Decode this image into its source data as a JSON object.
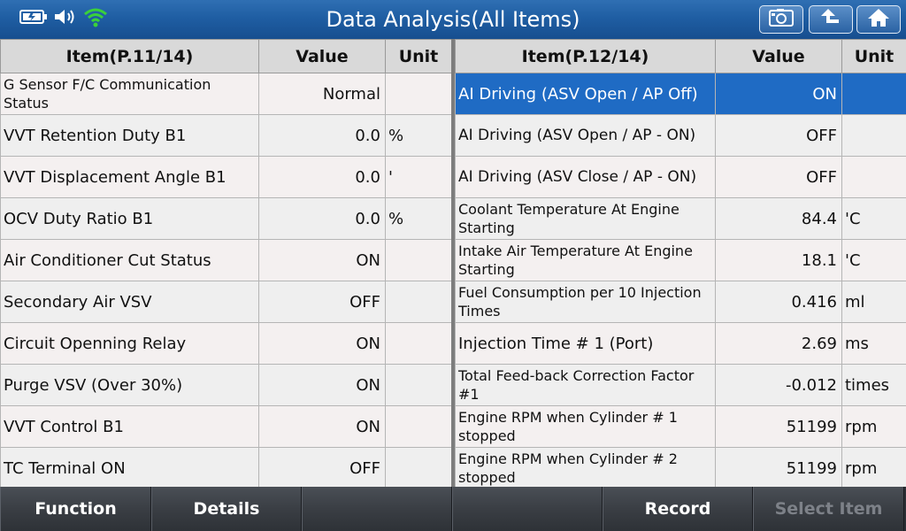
{
  "header": {
    "title": "Data Analysis(All Items)",
    "icons": [
      "battery-icon",
      "speaker-icon",
      "wifi-icon"
    ],
    "buttons": [
      "screenshot-icon",
      "back-icon",
      "home-icon"
    ]
  },
  "left": {
    "headers": {
      "item": "Item(P.11/14)",
      "value": "Value",
      "unit": "Unit"
    },
    "rows": [
      {
        "item": "G Sensor F/C Communication Status",
        "value": "Normal",
        "unit": ""
      },
      {
        "item": "VVT Retention Duty B1",
        "value": "0.0",
        "unit": "%"
      },
      {
        "item": "VVT Displacement Angle B1",
        "value": "0.0",
        "unit": "'"
      },
      {
        "item": "OCV Duty Ratio B1",
        "value": "0.0",
        "unit": "%"
      },
      {
        "item": "Air Conditioner Cut Status",
        "value": "ON",
        "unit": ""
      },
      {
        "item": "Secondary Air VSV",
        "value": "OFF",
        "unit": ""
      },
      {
        "item": "Circuit Openning Relay",
        "value": "ON",
        "unit": ""
      },
      {
        "item": "Purge VSV (Over 30%)",
        "value": "ON",
        "unit": ""
      },
      {
        "item": "VVT Control B1",
        "value": "ON",
        "unit": ""
      },
      {
        "item": "TC Terminal ON",
        "value": "OFF",
        "unit": ""
      }
    ]
  },
  "right": {
    "headers": {
      "item": "Item(P.12/14)",
      "value": "Value",
      "unit": "Unit"
    },
    "rows": [
      {
        "item": "AI Driving (ASV Open / AP Off)",
        "value": "ON",
        "unit": ""
      },
      {
        "item": "AI Driving (ASV Open / AP - ON)",
        "value": "OFF",
        "unit": ""
      },
      {
        "item": "AI Driving (ASV Close / AP - ON)",
        "value": "OFF",
        "unit": ""
      },
      {
        "item": "Coolant Temperature At Engine Starting",
        "value": "84.4",
        "unit": "'C"
      },
      {
        "item": "Intake Air Temperature At Engine Starting",
        "value": "18.1",
        "unit": "'C"
      },
      {
        "item": "Fuel Consumption per 10 Injection Times",
        "value": "0.416",
        "unit": "ml"
      },
      {
        "item": "Injection Time # 1 (Port)",
        "value": "2.69",
        "unit": "ms"
      },
      {
        "item": "Total Feed-back Correction Factor #1",
        "value": "-0.012",
        "unit": "times"
      },
      {
        "item": "Engine RPM when Cylinder # 1 stopped",
        "value": "51199",
        "unit": "rpm"
      },
      {
        "item": "Engine RPM when Cylinder # 2 stopped",
        "value": "51199",
        "unit": "rpm"
      }
    ]
  },
  "footer": {
    "function_label": "Function",
    "details_label": "Details",
    "blank1_label": "",
    "blank2_label": "",
    "record_label": "Record",
    "select_item_label": "Select Item"
  },
  "colors": {
    "header": "#1f5ea3",
    "selected_row": "#1f6bc4",
    "wifi": "#3ad13a"
  }
}
